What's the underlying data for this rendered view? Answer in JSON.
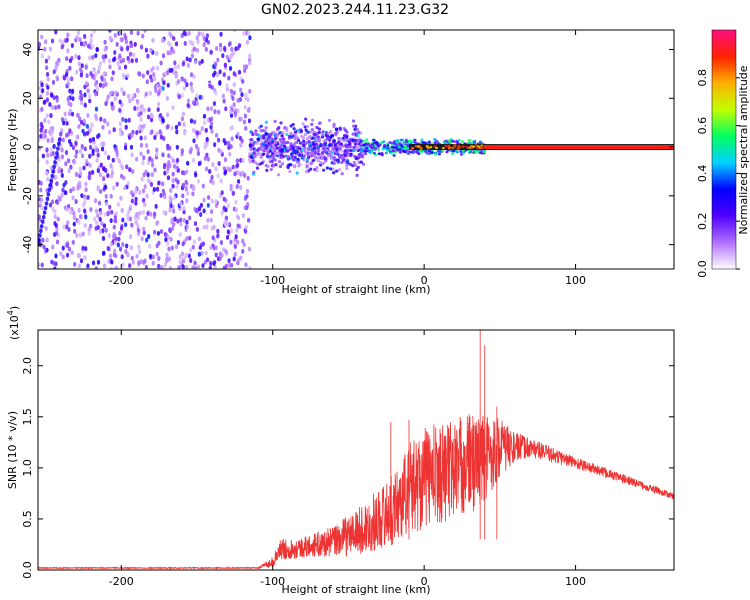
{
  "title": "GN02.2023.244.11.23.G32",
  "chart_data": [
    {
      "type": "heatmap",
      "xlabel": "Height of straight line (km)",
      "ylabel": "Frequency (Hz)",
      "xlim": [
        -255,
        165
      ],
      "ylim": [
        -50,
        48
      ],
      "x_ticks": [
        -200,
        -100,
        0,
        100
      ],
      "y_ticks": [
        -40,
        -20,
        0,
        20,
        40
      ],
      "grid": false,
      "colorbar": {
        "label": "Normalized spectral amplitude",
        "range": [
          0.0,
          1.0
        ],
        "ticks": [
          0.0,
          0.2,
          0.4,
          0.6,
          0.8
        ],
        "tick_labels": [
          "0.0",
          "0.2",
          "0.4",
          "0.6",
          "0.8"
        ],
        "colors": [
          "#ffffff",
          "#b070ff",
          "#5000ff",
          "#0000ff",
          "#00d0ff",
          "#00ff60",
          "#c0ff00",
          "#ffb000",
          "#ff2000",
          "#ff1080"
        ]
      },
      "regions": [
        {
          "x": [
            -255,
            -115
          ],
          "y": [
            -50,
            48
          ],
          "amplitude": 0.1,
          "description_values": "broad scatter"
        },
        {
          "x": [
            -115,
            -40
          ],
          "y": [
            -10,
            10
          ],
          "amplitude": 0.25
        },
        {
          "x": [
            -40,
            40
          ],
          "y": [
            -3,
            3
          ],
          "amplitude": 0.45
        },
        {
          "x": [
            40,
            165
          ],
          "y": [
            -1,
            1
          ],
          "amplitude": 0.9
        }
      ],
      "ridge": {
        "x": [
          -255,
          -250,
          -245,
          -240
        ],
        "y": [
          -40,
          -25,
          -10,
          5
        ]
      }
    },
    {
      "type": "line",
      "xlabel": "Height of straight line (km)",
      "ylabel": "SNR (10 * v/v)",
      "scale_label": "(x10",
      "scale_exp": "4",
      "scale_close": ")",
      "xlim": [
        -255,
        165
      ],
      "ylim": [
        0,
        2.35
      ],
      "x_ticks": [
        -200,
        -100,
        0,
        100
      ],
      "y_ticks": [
        0.0,
        0.5,
        1.0,
        1.5,
        2.0
      ],
      "y_tick_labels": [
        "0.0",
        "0.5",
        "1.0",
        "1.5",
        "2.0"
      ],
      "color": "#ee3333",
      "grid": false,
      "envelope": {
        "x": [
          -255,
          -110,
          -100,
          -95,
          -80,
          -60,
          -40,
          -20,
          -10,
          0,
          10,
          20,
          30,
          40,
          50,
          60,
          70,
          80,
          100,
          120,
          140,
          165
        ],
        "y": [
          0.02,
          0.02,
          0.08,
          0.2,
          0.22,
          0.28,
          0.4,
          0.6,
          0.8,
          0.9,
          0.95,
          1.0,
          1.05,
          1.1,
          1.2,
          1.2,
          1.2,
          1.15,
          1.05,
          0.95,
          0.85,
          0.72
        ],
        "spread": [
          0.005,
          0.005,
          0.05,
          0.1,
          0.1,
          0.15,
          0.25,
          0.35,
          0.45,
          0.5,
          0.5,
          0.5,
          0.5,
          0.45,
          0.3,
          0.15,
          0.1,
          0.08,
          0.06,
          0.05,
          0.04,
          0.03
        ]
      },
      "peaks": [
        {
          "x": -22,
          "y": 1.45
        },
        {
          "x": -10,
          "y": 1.47
        },
        {
          "x": 37,
          "y": 2.35
        },
        {
          "x": 40,
          "y": 2.2
        },
        {
          "x": 48,
          "y": 1.6
        }
      ]
    }
  ]
}
